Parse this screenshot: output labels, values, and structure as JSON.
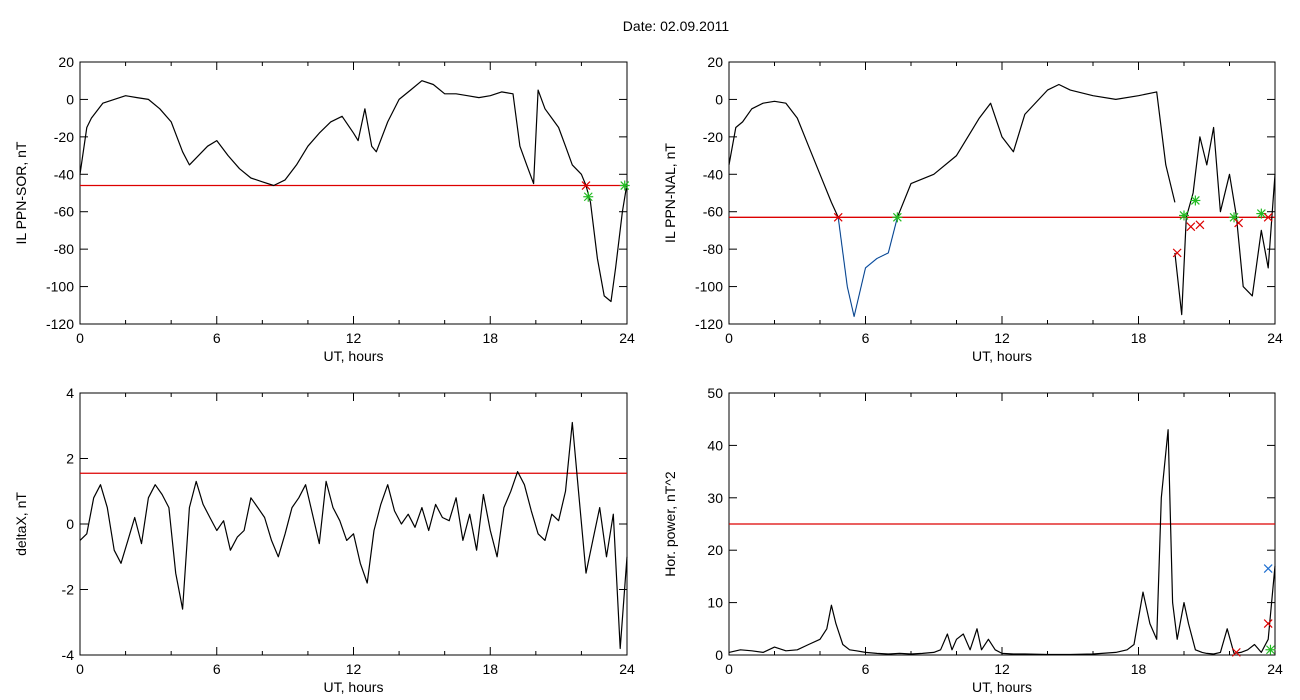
{
  "title": "Date:  02.09.2011",
  "chart_data": [
    {
      "type": "line",
      "ylabel": "IL PPN-SOR, nT",
      "xlabel": "UT, hours",
      "xlim": [
        0,
        24
      ],
      "ylim": [
        -120,
        20
      ],
      "xticks": [
        "0",
        "6",
        "12",
        "18",
        "24"
      ],
      "yticks": [
        "-120",
        "-100",
        "-80",
        "-60",
        "-40",
        "-20",
        "0",
        "20"
      ],
      "threshold": -46,
      "colors": {
        "main": "#000000",
        "threshold": "#dd0000",
        "highlight": "#1f6fd0",
        "marker_start": "#dd0000",
        "marker_end": "#22bb22"
      },
      "series": [
        {
          "x": [
            0,
            0.3,
            0.5,
            1,
            1.5,
            2,
            2.5,
            3,
            3.5,
            4,
            4.5,
            4.8,
            5.2,
            5.6,
            6,
            6.5,
            7,
            7.5,
            8,
            8.5,
            9,
            9.5,
            10,
            10.5,
            11,
            11.5,
            12,
            12.2,
            12.5,
            12.8,
            13,
            13.5,
            14,
            14.5,
            15,
            15.5,
            16,
            16.5,
            17,
            17.5,
            18,
            18.5,
            19,
            19.3,
            19.6,
            19.9,
            20.1,
            20.4,
            20.7,
            21,
            21.3,
            21.6,
            22,
            22.2
          ],
          "y": [
            -40,
            -15,
            -10,
            -2,
            0,
            2,
            1,
            0,
            -5,
            -12,
            -28,
            -35,
            -30,
            -25,
            -22,
            -30,
            -37,
            -42,
            -44,
            -46,
            -43,
            -35,
            -25,
            -18,
            -12,
            -9,
            -18,
            -22,
            -5,
            -25,
            -28,
            -12,
            0,
            5,
            10,
            8,
            3,
            3,
            2,
            1,
            2,
            4,
            3,
            -25,
            -35,
            -45,
            5,
            -5,
            -10,
            -15,
            -25,
            -35,
            -40,
            -46
          ]
        },
        {
          "x": [
            22.2,
            22.4,
            22.7,
            23,
            23.3,
            23.5,
            23.8,
            24
          ],
          "y": [
            -46,
            -55,
            -85,
            -105,
            -108,
            -90,
            -60,
            -45
          ]
        }
      ],
      "markers": [
        {
          "x": 22.2,
          "y": -46,
          "type": "start"
        },
        {
          "x": 22.3,
          "y": -52,
          "type": "end"
        },
        {
          "x": 23.9,
          "y": -46,
          "type": "end"
        }
      ]
    },
    {
      "type": "line",
      "ylabel": "IL PPN-NAL, nT",
      "xlabel": "UT, hours",
      "xlim": [
        0,
        24
      ],
      "ylim": [
        -120,
        20
      ],
      "xticks": [
        "0",
        "6",
        "12",
        "18",
        "24"
      ],
      "yticks": [
        "-120",
        "-100",
        "-80",
        "-60",
        "-40",
        "-20",
        "0",
        "20"
      ],
      "threshold": -63,
      "colors": {
        "main": "#000000",
        "threshold": "#dd0000",
        "highlight": "#1f6fd0",
        "marker_start": "#dd0000",
        "marker_end": "#22bb22"
      },
      "series": [
        {
          "x": [
            0,
            0.3,
            0.6,
            1,
            1.5,
            2,
            2.5,
            3,
            3.5,
            4,
            4.5,
            4.8
          ],
          "y": [
            -35,
            -15,
            -12,
            -5,
            -2,
            -1,
            -2,
            -10,
            -25,
            -40,
            -55,
            -63
          ]
        },
        {
          "x": [
            4.8,
            5.2,
            5.5,
            6,
            6.5,
            7,
            7.4
          ],
          "y": [
            -63,
            -100,
            -116,
            -90,
            -85,
            -82,
            -63
          ]
        },
        {
          "x": [
            7.4,
            8,
            9,
            10,
            11,
            11.5,
            12,
            12.5,
            13,
            14,
            14.5,
            15,
            16,
            17,
            18,
            18.8,
            19.2,
            19.6
          ],
          "y": [
            -63,
            -45,
            -40,
            -30,
            -10,
            -2,
            -20,
            -28,
            -8,
            5,
            8,
            5,
            2,
            0,
            2,
            4,
            -35,
            -55
          ]
        },
        {
          "x": [
            19.6,
            19.9,
            20.1,
            20.4,
            20.7,
            21,
            21.3,
            21.6,
            22,
            22.3,
            22.6,
            23,
            23.4,
            23.7,
            24
          ],
          "y": [
            -82,
            -115,
            -63,
            -50,
            -20,
            -35,
            -15,
            -60,
            -40,
            -62,
            -100,
            -105,
            -70,
            -90,
            -40
          ]
        }
      ],
      "markers": [
        {
          "x": 4.8,
          "y": -63,
          "type": "start"
        },
        {
          "x": 7.4,
          "y": -63,
          "type": "end"
        },
        {
          "x": 19.7,
          "y": -82,
          "type": "start"
        },
        {
          "x": 20.0,
          "y": -62,
          "type": "end"
        },
        {
          "x": 20.3,
          "y": -68,
          "type": "start"
        },
        {
          "x": 20.5,
          "y": -54,
          "type": "end"
        },
        {
          "x": 20.7,
          "y": -67,
          "type": "start"
        },
        {
          "x": 22.2,
          "y": -63,
          "type": "end"
        },
        {
          "x": 22.4,
          "y": -66,
          "type": "start"
        },
        {
          "x": 23.4,
          "y": -61,
          "type": "end"
        },
        {
          "x": 23.7,
          "y": -63,
          "type": "start"
        }
      ]
    },
    {
      "type": "line",
      "ylabel": "deltaX, nT",
      "xlabel": "UT, hours",
      "xlim": [
        0,
        24
      ],
      "ylim": [
        -4,
        4
      ],
      "xticks": [
        "0",
        "6",
        "12",
        "18",
        "24"
      ],
      "yticks": [
        "-4",
        "-2",
        "0",
        "2",
        "4"
      ],
      "threshold": 1.55,
      "colors": {
        "main": "#000000",
        "threshold": "#dd0000"
      },
      "series": [
        {
          "x": [
            0,
            0.3,
            0.6,
            0.9,
            1.2,
            1.5,
            1.8,
            2.1,
            2.4,
            2.7,
            3,
            3.3,
            3.6,
            3.9,
            4.2,
            4.5,
            4.8,
            5.1,
            5.4,
            5.7,
            6,
            6.3,
            6.6,
            6.9,
            7.2,
            7.5,
            7.8,
            8.1,
            8.4,
            8.7,
            9,
            9.3,
            9.6,
            9.9,
            10.2,
            10.5,
            10.8,
            11.1,
            11.4,
            11.7,
            12,
            12.3,
            12.6,
            12.9,
            13.2,
            13.5,
            13.8,
            14.1,
            14.4,
            14.7,
            15,
            15.3,
            15.6,
            15.9,
            16.2,
            16.5,
            16.8,
            17.1,
            17.4,
            17.7,
            18,
            18.3,
            18.6,
            18.9,
            19.2,
            19.5,
            19.8,
            20.1,
            20.4,
            20.7,
            21,
            21.3,
            21.6,
            21.9,
            22.2,
            22.5,
            22.8,
            23.1,
            23.4,
            23.7,
            24
          ],
          "y": [
            -0.5,
            -0.3,
            0.8,
            1.2,
            0.5,
            -0.8,
            -1.2,
            -0.5,
            0.2,
            -0.6,
            0.8,
            1.2,
            0.9,
            0.5,
            -1.5,
            -2.6,
            0.5,
            1.3,
            0.6,
            0.2,
            -0.2,
            0.1,
            -0.8,
            -0.4,
            -0.2,
            0.8,
            0.5,
            0.2,
            -0.5,
            -1,
            -0.3,
            0.5,
            0.8,
            1.2,
            0.3,
            -0.6,
            1.3,
            0.5,
            0.1,
            -0.5,
            -0.3,
            -1.2,
            -1.8,
            -0.2,
            0.6,
            1.2,
            0.4,
            0,
            0.3,
            -0.1,
            0.5,
            -0.2,
            0.6,
            0.2,
            0.1,
            0.8,
            -0.5,
            0.3,
            -0.8,
            0.9,
            -0.2,
            -1,
            0.5,
            1,
            1.6,
            1.2,
            0.4,
            -0.3,
            -0.5,
            0.3,
            0.1,
            1,
            3.1,
            0.8,
            -1.5,
            -0.5,
            0.5,
            -1,
            0.3,
            -3.8,
            -1
          ]
        }
      ]
    },
    {
      "type": "line",
      "ylabel": "Hor. power, nT^2",
      "xlabel": "UT, hours",
      "xlim": [
        0,
        24
      ],
      "ylim": [
        0,
        50
      ],
      "xticks": [
        "0",
        "6",
        "12",
        "18",
        "24"
      ],
      "yticks": [
        "0",
        "10",
        "20",
        "30",
        "40",
        "50"
      ],
      "threshold": 25,
      "colors": {
        "main": "#000000",
        "threshold": "#dd0000",
        "marker_start": "#dd0000",
        "marker_end": "#22bb22",
        "marker_third": "#1f6fd0"
      },
      "series": [
        {
          "x": [
            0,
            0.5,
            1,
            1.5,
            2,
            2.5,
            3,
            3.5,
            4,
            4.3,
            4.5,
            4.7,
            5,
            5.3,
            5.6,
            6,
            6.5,
            7,
            7.5,
            8,
            8.5,
            9,
            9.3,
            9.6,
            9.8,
            10,
            10.3,
            10.6,
            10.9,
            11.1,
            11.4,
            11.7,
            12,
            12.5,
            13,
            14,
            15,
            16,
            17,
            17.5,
            17.8,
            18.2,
            18.5,
            18.8,
            19,
            19.3,
            19.5,
            19.7,
            20,
            20.2,
            20.5,
            20.8,
            21,
            21.3,
            21.6,
            21.9,
            22.2,
            22.5,
            22.8,
            23.1,
            23.4,
            23.7,
            24
          ],
          "y": [
            0.5,
            1,
            0.8,
            0.5,
            1.5,
            0.8,
            1,
            2,
            3,
            5,
            9.5,
            6,
            2,
            1,
            0.8,
            0.5,
            0.3,
            0.2,
            0.3,
            0.2,
            0.3,
            0.5,
            1,
            4,
            1,
            3,
            4,
            1,
            5,
            1,
            3,
            1,
            0.3,
            0.2,
            0.2,
            0.1,
            0.1,
            0.2,
            0.5,
            1,
            2,
            12,
            6,
            3,
            30,
            43,
            10,
            3,
            10,
            6,
            1,
            0.5,
            0.3,
            0.2,
            0.5,
            5,
            0.3,
            0.5,
            1,
            2,
            0.5,
            3,
            17
          ]
        }
      ],
      "markers": [
        {
          "x": 22.3,
          "y": 0.5,
          "type": "start"
        },
        {
          "x": 23.7,
          "y": 6,
          "type": "start"
        },
        {
          "x": 23.8,
          "y": 1,
          "type": "end"
        },
        {
          "x": 23.7,
          "y": 16.5,
          "type": "third"
        }
      ]
    }
  ]
}
